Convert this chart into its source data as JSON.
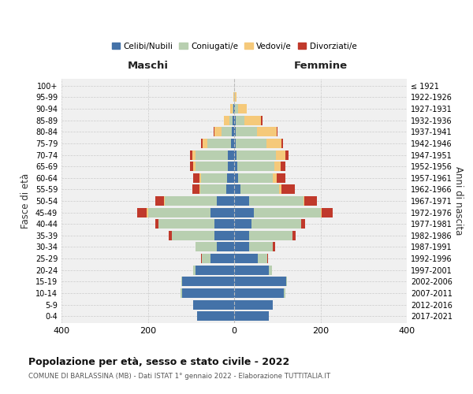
{
  "age_groups": [
    "0-4",
    "5-9",
    "10-14",
    "15-19",
    "20-24",
    "25-29",
    "30-34",
    "35-39",
    "40-44",
    "45-49",
    "50-54",
    "55-59",
    "60-64",
    "65-69",
    "70-74",
    "75-79",
    "80-84",
    "85-89",
    "90-94",
    "95-99",
    "100+"
  ],
  "birth_years": [
    "2017-2021",
    "2012-2016",
    "2007-2011",
    "2002-2006",
    "1997-2001",
    "1992-1996",
    "1987-1991",
    "1982-1986",
    "1977-1981",
    "1972-1976",
    "1967-1971",
    "1962-1966",
    "1957-1961",
    "1952-1956",
    "1947-1951",
    "1942-1946",
    "1937-1941",
    "1932-1936",
    "1927-1931",
    "1922-1926",
    "≤ 1921"
  ],
  "maschi": {
    "celibi": [
      85,
      95,
      120,
      120,
      90,
      55,
      40,
      45,
      45,
      55,
      40,
      18,
      17,
      14,
      14,
      8,
      5,
      3,
      1,
      0,
      0
    ],
    "coniugati": [
      0,
      0,
      4,
      3,
      5,
      20,
      50,
      100,
      130,
      145,
      120,
      60,
      60,
      75,
      75,
      55,
      25,
      8,
      3,
      0,
      0
    ],
    "vedovi": [
      0,
      0,
      0,
      0,
      0,
      0,
      0,
      0,
      0,
      2,
      2,
      3,
      3,
      6,
      8,
      10,
      15,
      12,
      5,
      1,
      0
    ],
    "divorziati": [
      0,
      0,
      0,
      0,
      0,
      1,
      0,
      7,
      7,
      22,
      20,
      15,
      15,
      7,
      5,
      3,
      2,
      0,
      0,
      0,
      0
    ]
  },
  "femmine": {
    "nubili": [
      80,
      90,
      115,
      120,
      80,
      55,
      35,
      35,
      40,
      45,
      35,
      15,
      10,
      8,
      6,
      4,
      3,
      3,
      1,
      0,
      0
    ],
    "coniugate": [
      0,
      0,
      3,
      3,
      8,
      22,
      55,
      100,
      115,
      155,
      125,
      90,
      80,
      85,
      90,
      70,
      50,
      20,
      8,
      2,
      0
    ],
    "vedove": [
      0,
      0,
      0,
      0,
      0,
      0,
      0,
      0,
      0,
      3,
      3,
      5,
      8,
      15,
      22,
      35,
      45,
      40,
      20,
      4,
      0
    ],
    "divorziate": [
      0,
      0,
      0,
      0,
      0,
      1,
      5,
      7,
      10,
      25,
      28,
      30,
      20,
      10,
      8,
      5,
      3,
      2,
      0,
      0,
      0
    ]
  },
  "colors": {
    "celibi": "#4472a8",
    "coniugati": "#b8cfb0",
    "vedovi": "#f5c97a",
    "divorziati": "#c0392b"
  },
  "title": "Popolazione per età, sesso e stato civile - 2022",
  "subtitle": "COMUNE DI BARLASSINA (MB) - Dati ISTAT 1° gennaio 2022 - Elaborazione TUTTITALIA.IT",
  "xlabel_maschi": "Maschi",
  "xlabel_femmine": "Femmine",
  "ylabel": "Fasce di età",
  "ylabel_right": "Anni di nascita",
  "legend_labels": [
    "Celibi/Nubili",
    "Coniugati/e",
    "Vedovi/e",
    "Divorziati/e"
  ],
  "xlim": 400,
  "bg_color": "#f0f0f0",
  "grid_color": "#cccccc"
}
